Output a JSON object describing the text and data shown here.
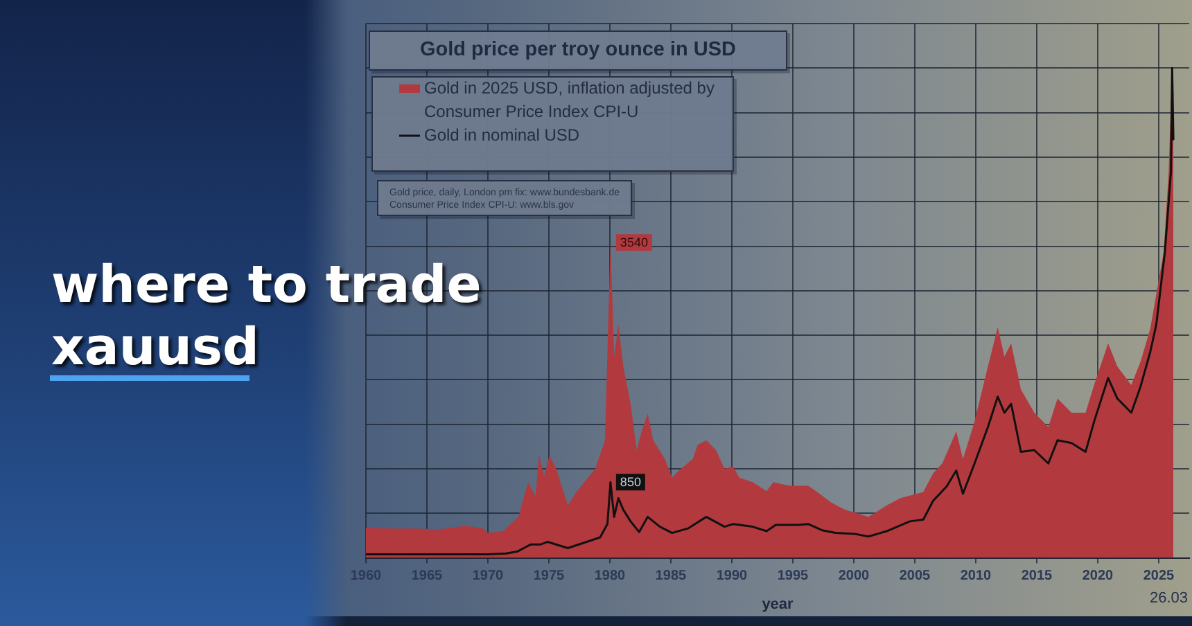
{
  "chart_data": {
    "type": "line",
    "title": "Gold price per troy ounce in USD",
    "xlabel": "year",
    "annotations": [
      "where to trade xauusd",
      "Gold price, daily, London pm fix: www.bundesbank.de",
      "Consumer Price Index CPI-U: www.bls.gov",
      "26.03"
    ],
    "series": [
      {
        "name": "Gold in 2025 USD, inflation adjusted by Consumer Price Index CPI-U",
        "type": "area",
        "color": "#b23a3e",
        "x": [
          1960,
          1962,
          1964,
          1966,
          1968.2,
          1969.6,
          1970,
          1971.25,
          1972.5,
          1973.3,
          1973.9,
          1974.2,
          1974.6,
          1975.05,
          1975.6,
          1976.55,
          1977.3,
          1978.8,
          1979.6,
          1980.05,
          1980.35,
          1980.7,
          1981.1,
          1981.7,
          1982.2,
          1982.6,
          1983.1,
          1983.55,
          1984.5,
          1985.1,
          1985.65,
          1986.8,
          1987.2,
          1987.9,
          1988.7,
          1989.4,
          1990.1,
          1990.6,
          1991.7,
          1992.85,
          1993.4,
          1994.7,
          1996.25,
          1997,
          1998.15,
          1999.3,
          2000.05,
          2001.2,
          2002.7,
          2003.8,
          2005.7,
          2006.5,
          2007.25,
          2008.4,
          2008.95,
          2009.9,
          2011,
          2011.8,
          2012.35,
          2012.9,
          2013.7,
          2014.8,
          2015.95,
          2016.7,
          2017.85,
          2019,
          2019.7,
          2020.85,
          2021.6,
          2022.75,
          2023.5,
          2024.3,
          2025.4,
          2025.8,
          2026.1,
          2026.2
        ],
        "values": [
          340,
          330,
          330,
          320,
          360,
          330,
          280,
          300,
          460,
          850,
          690,
          1160,
          910,
          1150,
          1000,
          590,
          750,
          1000,
          1320,
          3540,
          2260,
          2620,
          2150,
          1730,
          1210,
          1420,
          1620,
          1320,
          1110,
          900,
          980,
          1110,
          1270,
          1320,
          1210,
          1000,
          1030,
          900,
          850,
          750,
          850,
          810,
          810,
          740,
          620,
          540,
          510,
          460,
          590,
          670,
          740,
          950,
          1060,
          1420,
          1110,
          1530,
          2150,
          2590,
          2260,
          2410,
          1890,
          1630,
          1470,
          1790,
          1630,
          1630,
          1940,
          2410,
          2150,
          1940,
          2200,
          2570,
          3430,
          4290,
          5500,
          4700
        ],
        "value_labels": [
          null,
          null,
          null,
          null,
          null,
          null,
          null,
          null,
          null,
          null,
          null,
          null,
          null,
          null,
          null,
          null,
          null,
          null,
          null,
          "3540",
          null,
          null,
          null,
          null,
          null,
          null,
          null,
          null,
          null,
          null,
          null,
          null,
          null,
          null,
          null,
          null,
          null,
          null,
          null,
          null,
          null,
          null,
          null,
          null,
          null,
          null,
          null,
          null,
          null,
          null,
          null,
          null,
          null,
          null,
          null,
          null,
          null,
          null,
          null,
          null,
          null,
          null,
          null,
          null,
          null,
          null,
          null,
          null,
          null,
          null,
          null,
          null,
          null,
          null,
          null,
          null
        ]
      },
      {
        "name": "Gold in nominal USD",
        "type": "line",
        "color": "#111111",
        "x": [
          1960,
          1965,
          1968.3,
          1969.5,
          1970,
          1971.5,
          1972.4,
          1973.5,
          1974.3,
          1974.9,
          1976.55,
          1978.1,
          1979.2,
          1979.8,
          1980.05,
          1980.35,
          1980.7,
          1981.1,
          1981.7,
          1982.4,
          1983.1,
          1984.1,
          1985.1,
          1986.4,
          1987.9,
          1989.4,
          1990.1,
          1991.7,
          1992.85,
          1993.6,
          1995.5,
          1996.25,
          1997.4,
          1998.5,
          2000.05,
          2001.2,
          2002.7,
          2004.6,
          2005.7,
          2006.5,
          2007.6,
          2008.4,
          2008.95,
          2009.9,
          2011,
          2011.8,
          2012.35,
          2012.9,
          2013.7,
          2014.8,
          2015.95,
          2016.7,
          2017.85,
          2019,
          2019.7,
          2020.85,
          2021.6,
          2022.75,
          2023.5,
          2024.3,
          2024.8,
          2025.5,
          2026,
          2026.1,
          2026.2
        ],
        "values": [
          40,
          40,
          40,
          40,
          40,
          50,
          70,
          150,
          150,
          180,
          110,
          180,
          230,
          380,
          850,
          460,
          670,
          540,
          410,
          290,
          460,
          350,
          280,
          330,
          460,
          350,
          380,
          350,
          300,
          370,
          370,
          380,
          310,
          280,
          270,
          240,
          300,
          410,
          430,
          640,
          800,
          980,
          720,
          1060,
          1470,
          1810,
          1630,
          1730,
          1190,
          1210,
          1060,
          1320,
          1290,
          1190,
          1530,
          2020,
          1790,
          1630,
          1920,
          2310,
          2620,
          3430,
          4340,
          5500,
          4700
        ],
        "value_labels": [
          null,
          null,
          null,
          null,
          null,
          null,
          null,
          null,
          null,
          null,
          null,
          null,
          null,
          null,
          "850",
          null,
          null,
          null,
          null,
          null,
          null,
          null,
          null,
          null,
          null,
          null,
          null,
          null,
          null,
          null,
          null,
          null,
          null,
          null,
          null,
          null,
          null,
          null,
          null,
          null,
          null,
          null,
          null,
          null,
          null,
          null,
          null,
          null,
          null,
          null,
          null,
          null,
          null,
          null,
          null,
          null,
          null,
          null,
          null,
          null,
          null,
          null,
          null,
          null,
          null
        ]
      }
    ],
    "xlim": [
      1960,
      2027.5
    ],
    "xticks": [
      1960,
      1965,
      1970,
      1975,
      1980,
      1985,
      1990,
      1995,
      2000,
      2005,
      2010,
      2015,
      2020,
      2025
    ],
    "ylim": [
      0,
      6000
    ],
    "yticks": [
      {
        "value": 0,
        "label": null
      },
      {
        "value": 500,
        "label": null
      },
      {
        "value": 1000,
        "label": null
      },
      {
        "value": 1500,
        "label": null
      },
      {
        "value": 2000,
        "label": null
      },
      {
        "value": 2500,
        "label": null
      },
      {
        "value": 3000,
        "label": null
      },
      {
        "value": 3500,
        "label": null
      },
      {
        "value": 4000,
        "label": null
      },
      {
        "value": 4500,
        "label": null
      },
      {
        "value": 5000,
        "label": null
      },
      {
        "value": 5500,
        "label": null
      },
      {
        "value": 6000,
        "label": null
      }
    ],
    "grid": true,
    "legend": "top left",
    "tick_labels": "x",
    "marker": "none",
    "line_style": "solid"
  }
}
